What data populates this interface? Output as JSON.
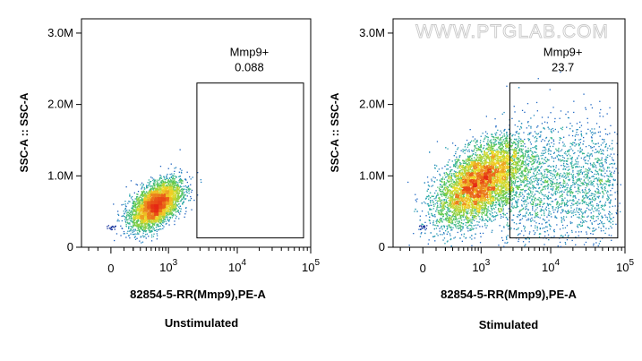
{
  "watermark": "WWW.PTGLAB.COM",
  "chart_data": [
    {
      "type": "scatter",
      "title": "",
      "condition_label": "Unstimulated",
      "xlabel": "82854-5-RR(Mmp9),PE-A",
      "ylabel": "SSC-A :: SSC-A",
      "x_scale": "biexponential",
      "xlim": [
        -300,
        100000
      ],
      "ylim": [
        0,
        3200000
      ],
      "x_ticks": [
        {
          "value": 0,
          "label": "0"
        },
        {
          "value": 1000,
          "base": "10",
          "exp": "3"
        },
        {
          "value": 10000,
          "base": "10",
          "exp": "4"
        },
        {
          "value": 100000,
          "base": "10",
          "exp": "5"
        }
      ],
      "y_ticks": [
        {
          "value": 0,
          "label": "0"
        },
        {
          "value": 1000000,
          "label": "1.0M"
        },
        {
          "value": 2000000,
          "label": "2.0M"
        },
        {
          "value": 3000000,
          "label": "3.0M"
        }
      ],
      "gate": {
        "name": "Mmp9+",
        "percent": "0.088",
        "x_range": [
          2700,
          80000
        ],
        "y_range": [
          130000,
          2300000
        ]
      },
      "population": {
        "center_x": 600,
        "center_y": 600000,
        "count": 4200,
        "sx": 0.17,
        "sy": 190000
      },
      "colormap": "density (blue-green-yellow-red)",
      "grid": false
    },
    {
      "type": "scatter",
      "title": "",
      "condition_label": "Stimulated",
      "xlabel": "82854-5-RR(Mmp9),PE-A",
      "ylabel": "SSC-A :: SSC-A",
      "x_scale": "biexponential",
      "xlim": [
        -300,
        100000
      ],
      "ylim": [
        0,
        3200000
      ],
      "x_ticks": [
        {
          "value": 0,
          "label": "0"
        },
        {
          "value": 1000,
          "base": "10",
          "exp": "3"
        },
        {
          "value": 10000,
          "base": "10",
          "exp": "4"
        },
        {
          "value": 100000,
          "base": "10",
          "exp": "5"
        }
      ],
      "y_ticks": [
        {
          "value": 0,
          "label": "0"
        },
        {
          "value": 1000000,
          "label": "1.0M"
        },
        {
          "value": 2000000,
          "label": "2.0M"
        },
        {
          "value": 3000000,
          "label": "3.0M"
        }
      ],
      "gate": {
        "name": "Mmp9+",
        "percent": "23.7",
        "x_range": [
          2700,
          80000
        ],
        "y_range": [
          130000,
          2300000
        ]
      },
      "population": {
        "center_x": 900,
        "center_y": 900000,
        "count": 9000,
        "sx": 0.28,
        "sy": 330000,
        "tail_fraction": 0.26
      },
      "colormap": "density (blue-green-yellow-red)",
      "grid": false
    }
  ]
}
